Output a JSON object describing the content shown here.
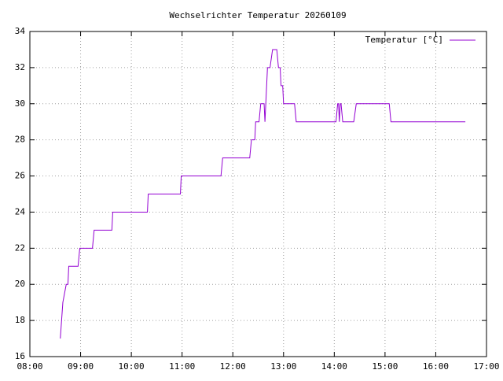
{
  "chart_data": {
    "type": "line",
    "title": "Wechselrichter Temperatur 20260109",
    "x": [
      "08:36",
      "08:39",
      "08:43",
      "08:45",
      "08:46",
      "08:57",
      "08:59",
      "09:14",
      "09:16",
      "09:37",
      "09:38",
      "10:19",
      "10:20",
      "10:58",
      "10:59",
      "11:46",
      "11:48",
      "12:20",
      "12:22",
      "12:26",
      "12:27",
      "12:31",
      "12:33",
      "12:37",
      "12:38",
      "12:39",
      "12:40",
      "12:41",
      "12:44",
      "12:47",
      "12:52",
      "12:54",
      "12:56",
      "12:57",
      "12:59",
      "13:00",
      "13:13",
      "13:15",
      "14:02",
      "14:04",
      "14:05",
      "14:06",
      "14:07",
      "14:08",
      "14:10",
      "14:23",
      "14:26",
      "15:05",
      "15:07",
      "16:35"
    ],
    "series": [
      {
        "name": "Temperatur [°C]",
        "color": "#9400d3",
        "values": [
          17,
          19,
          20,
          20,
          21,
          21,
          22,
          22,
          23,
          23,
          24,
          24,
          25,
          25,
          26,
          26,
          27,
          27,
          28,
          28,
          29,
          29,
          30,
          30,
          29,
          30,
          31,
          32,
          32,
          33,
          33,
          32,
          32,
          31,
          31,
          30,
          30,
          29,
          29,
          30,
          30,
          29,
          30,
          30,
          29,
          29,
          30,
          30,
          29,
          29
        ]
      }
    ],
    "xlim": [
      "08:00",
      "17:00"
    ],
    "xticks": [
      "08:00",
      "09:00",
      "10:00",
      "11:00",
      "12:00",
      "13:00",
      "14:00",
      "15:00",
      "16:00",
      "17:00"
    ],
    "ylim": [
      16,
      34
    ],
    "yticks": [
      16,
      18,
      20,
      22,
      24,
      26,
      28,
      30,
      32,
      34
    ],
    "grid": true,
    "legend": "top-right"
  }
}
